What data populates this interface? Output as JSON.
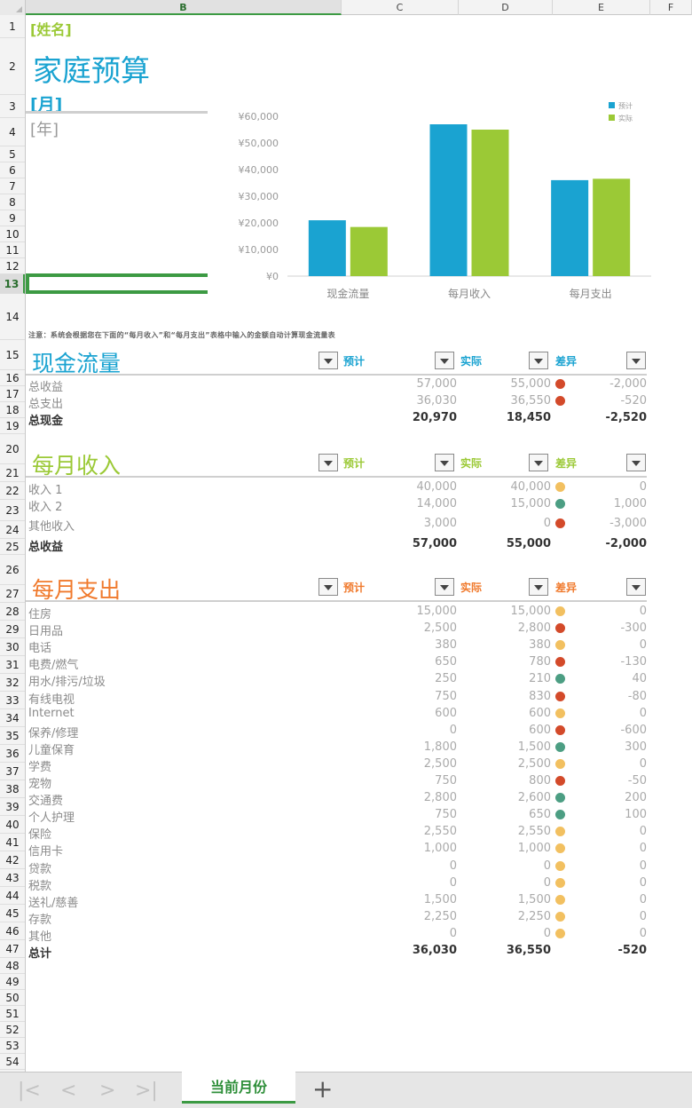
{
  "columns": [
    "B",
    "C",
    "D",
    "E",
    "F"
  ],
  "rows": [
    "1",
    "2",
    "3",
    "4",
    "5",
    "6",
    "7",
    "8",
    "9",
    "10",
    "11",
    "12",
    "13",
    "14",
    "15",
    "16",
    "17",
    "18",
    "19",
    "20",
    "21",
    "22",
    "23",
    "24",
    "25",
    "26",
    "27",
    "28",
    "29",
    "30",
    "31",
    "32",
    "33",
    "34",
    "35",
    "36",
    "37",
    "38",
    "39",
    "40",
    "41",
    "42",
    "43",
    "44",
    "45",
    "46",
    "47",
    "48",
    "49",
    "50",
    "51",
    "52",
    "53",
    "54"
  ],
  "header": {
    "name": "[姓名]",
    "title": "家庭预算",
    "month": "[月]",
    "year": "[年]"
  },
  "note": "注意：系统会根据您在下面的“每月收入”和“每月支出”表格中输入的金额自动计算现金流量表",
  "chart_data": {
    "type": "bar",
    "categories": [
      "现金流量",
      "每月收入",
      "每月支出"
    ],
    "series": [
      {
        "name": "预计",
        "values": [
          20970,
          57000,
          36030
        ]
      },
      {
        "name": "实际",
        "values": [
          18450,
          55000,
          36550
        ]
      }
    ],
    "ylim": [
      0,
      60000
    ],
    "yticks": [
      "¥0",
      "¥10,000",
      "¥20,000",
      "¥30,000",
      "¥40,000",
      "¥50,000",
      "¥60,000"
    ],
    "legend": "top-right",
    "colors": [
      "#1aa3d1",
      "#9bc936"
    ]
  },
  "sections": {
    "cashflow": {
      "title": "现金流量",
      "color": "#1aa3d1",
      "h_planned": "预计",
      "h_actual": "实际",
      "h_diff": "差异",
      "rows": [
        {
          "label": "总收益",
          "planned": "57,000",
          "actual": "55,000",
          "dot": "#d34a2a",
          "diff": "-2,000"
        },
        {
          "label": "总支出",
          "planned": "36,030",
          "actual": "36,550",
          "dot": "#d34a2a",
          "diff": "-520"
        }
      ],
      "total": {
        "label": "总现金",
        "planned": "20,970",
        "actual": "18,450",
        "diff": "-2,520"
      }
    },
    "income": {
      "title": "每月收入",
      "color": "#9bc936",
      "h_planned": "预计",
      "h_actual": "实际",
      "h_diff": "差异",
      "rows": [
        {
          "label": "收入 1",
          "planned": "40,000",
          "actual": "40,000",
          "dot": "#f2c060",
          "diff": "0"
        },
        {
          "label": "收入 2",
          "planned": "14,000",
          "actual": "15,000",
          "dot": "#4c9e83",
          "diff": "1,000"
        },
        {
          "label": "其他收入",
          "planned": "3,000",
          "actual": "0",
          "dot": "#d34a2a",
          "diff": "-3,000"
        }
      ],
      "total": {
        "label": "总收益",
        "planned": "57,000",
        "actual": "55,000",
        "diff": "-2,000"
      }
    },
    "expense": {
      "title": "每月支出",
      "color": "#f07a2d",
      "h_planned": "预计",
      "h_actual": "实际",
      "h_diff": "差异",
      "rows": [
        {
          "label": "住房",
          "planned": "15,000",
          "actual": "15,000",
          "dot": "#f2c060",
          "diff": "0"
        },
        {
          "label": "日用品",
          "planned": "2,500",
          "actual": "2,800",
          "dot": "#d34a2a",
          "diff": "-300"
        },
        {
          "label": "电话",
          "planned": "380",
          "actual": "380",
          "dot": "#f2c060",
          "diff": "0"
        },
        {
          "label": "电费/燃气",
          "planned": "650",
          "actual": "780",
          "dot": "#d34a2a",
          "diff": "-130"
        },
        {
          "label": "用水/排污/垃圾",
          "planned": "250",
          "actual": "210",
          "dot": "#4c9e83",
          "diff": "40"
        },
        {
          "label": "有线电视",
          "planned": "750",
          "actual": "830",
          "dot": "#d34a2a",
          "diff": "-80"
        },
        {
          "label": "Internet",
          "planned": "600",
          "actual": "600",
          "dot": "#f2c060",
          "diff": "0"
        },
        {
          "label": "保养/修理",
          "planned": "0",
          "actual": "600",
          "dot": "#d34a2a",
          "diff": "-600"
        },
        {
          "label": "儿童保育",
          "planned": "1,800",
          "actual": "1,500",
          "dot": "#4c9e83",
          "diff": "300"
        },
        {
          "label": "学费",
          "planned": "2,500",
          "actual": "2,500",
          "dot": "#f2c060",
          "diff": "0"
        },
        {
          "label": "宠物",
          "planned": "750",
          "actual": "800",
          "dot": "#d34a2a",
          "diff": "-50"
        },
        {
          "label": "交通费",
          "planned": "2,800",
          "actual": "2,600",
          "dot": "#4c9e83",
          "diff": "200"
        },
        {
          "label": "个人护理",
          "planned": "750",
          "actual": "650",
          "dot": "#4c9e83",
          "diff": "100"
        },
        {
          "label": "保险",
          "planned": "2,550",
          "actual": "2,550",
          "dot": "#f2c060",
          "diff": "0"
        },
        {
          "label": "信用卡",
          "planned": "1,000",
          "actual": "1,000",
          "dot": "#f2c060",
          "diff": "0"
        },
        {
          "label": "贷款",
          "planned": "0",
          "actual": "0",
          "dot": "#f2c060",
          "diff": "0"
        },
        {
          "label": "税款",
          "planned": "0",
          "actual": "0",
          "dot": "#f2c060",
          "diff": "0"
        },
        {
          "label": "送礼/慈善",
          "planned": "1,500",
          "actual": "1,500",
          "dot": "#f2c060",
          "diff": "0"
        },
        {
          "label": "存款",
          "planned": "2,250",
          "actual": "2,250",
          "dot": "#f2c060",
          "diff": "0"
        },
        {
          "label": "其他",
          "planned": "0",
          "actual": "0",
          "dot": "#f2c060",
          "diff": "0"
        }
      ],
      "total": {
        "label": "总计",
        "planned": "36,030",
        "actual": "36,550",
        "diff": "-520"
      }
    }
  },
  "tabs": {
    "active": "当前月份",
    "add": "+",
    "nav": [
      "|<",
      "<",
      ">",
      ">|"
    ]
  }
}
